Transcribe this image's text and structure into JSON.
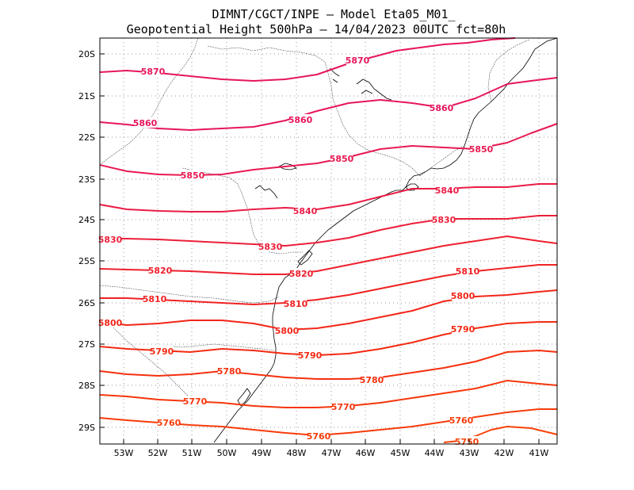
{
  "title": {
    "line1": "DIMNT/CGCT/INPE –  Model Eta05_M01_",
    "line2": "Geopotential Height 500hPa –  14/04/2023 00UTC fct=80h"
  },
  "axes": {
    "lat_labels": [
      "20S",
      "21S",
      "22S",
      "23S",
      "24S",
      "25S",
      "26S",
      "27S",
      "28S",
      "29S"
    ],
    "lon_labels": [
      "53W",
      "52W",
      "51W",
      "50W",
      "49W",
      "48W",
      "47W",
      "46W",
      "45W",
      "44W",
      "43W",
      "42W",
      "41W"
    ]
  },
  "colors": {
    "c5870": "#e6155e",
    "c5860": "#e6155e",
    "c5850": "#e81a52",
    "c5840": "#ea1c46",
    "c5830": "#ec1f3a",
    "c5820": "#ee202e",
    "c5810": "#f02222",
    "c5800": "#f22619",
    "c5790": "#f42a12",
    "c5780": "#f5300e",
    "c5770": "#f6360c",
    "c5760": "#f73c0a",
    "c5750": "#f8420a"
  },
  "contours": [
    {
      "value": 5870,
      "labels": [
        "5870",
        "5870"
      ]
    },
    {
      "value": 5860,
      "labels": [
        "5860",
        "5860",
        "5860"
      ]
    },
    {
      "value": 5850,
      "labels": [
        "5850",
        "5850",
        "5850"
      ]
    },
    {
      "value": 5840,
      "labels": [
        "5840",
        "5840"
      ]
    },
    {
      "value": 5830,
      "labels": [
        "5830",
        "5830",
        "5830"
      ]
    },
    {
      "value": 5820,
      "labels": [
        "5820",
        "5820"
      ]
    },
    {
      "value": 5810,
      "labels": [
        "5810",
        "5810",
        "5810"
      ]
    },
    {
      "value": 5800,
      "labels": [
        "5800",
        "5800",
        "5800"
      ]
    },
    {
      "value": 5790,
      "labels": [
        "5790",
        "5790",
        "5790"
      ]
    },
    {
      "value": 5780,
      "labels": [
        "5780",
        "5780"
      ]
    },
    {
      "value": 5770,
      "labels": [
        "5770",
        "5770"
      ]
    },
    {
      "value": 5760,
      "labels": [
        "5760",
        "5760",
        "5760"
      ]
    },
    {
      "value": 5750,
      "labels": [
        "5750"
      ]
    }
  ]
}
